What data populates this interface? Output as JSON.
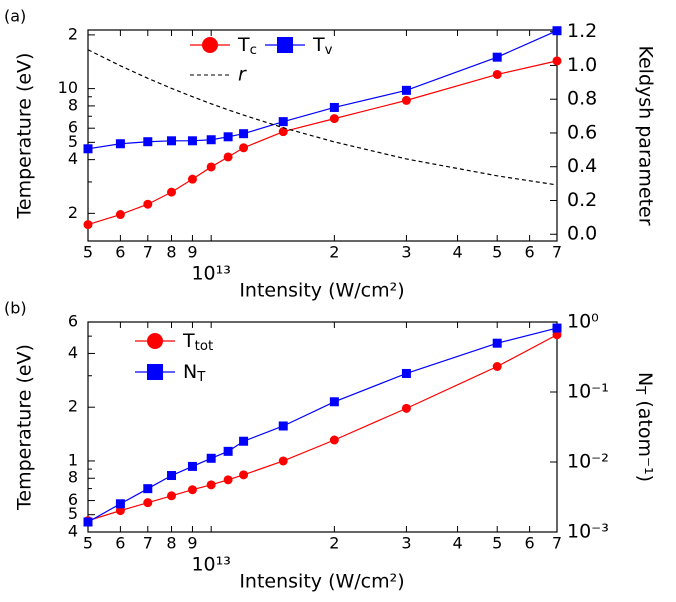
{
  "chart_data": [
    {
      "type": "line",
      "panel_label": "(a)",
      "xlabel": "Intensity (W/cm²)",
      "ylabel": "Temperature (eV)",
      "y2label": "Keldysh parameter",
      "xlog": true,
      "ylog": true,
      "y2log": false,
      "legend": "top",
      "x": [
        5000000000000.0,
        6000000000000.0,
        7000000000000.0,
        8000000000000.0,
        9000000000000.0,
        10000000000000.0,
        11000000000000.0,
        12000000000000.0,
        15000000000000.0,
        20000000000000.0,
        30000000000000.0,
        50000000000000.0,
        70000000000000.0
      ],
      "xlim": [
        5000000000000.0,
        70000000000000.0
      ],
      "xticks": [
        {
          "value": 5000000000000.0,
          "label": "5"
        },
        {
          "value": 6000000000000.0,
          "label": "6"
        },
        {
          "value": 7000000000000.0,
          "label": "7"
        },
        {
          "value": 8000000000000.0,
          "label": "8"
        },
        {
          "value": 9000000000000.0,
          "label": "9"
        },
        {
          "value": 10000000000000.0,
          "label": "10¹³"
        },
        {
          "value": 20000000000000.0,
          "label": "2"
        },
        {
          "value": 30000000000000.0,
          "label": "3"
        },
        {
          "value": 40000000000000.0,
          "label": "4"
        },
        {
          "value": 50000000000000.0,
          "label": "5"
        },
        {
          "value": 60000000000000.0,
          "label": "6"
        },
        {
          "value": 70000000000000.0,
          "label": "7"
        }
      ],
      "ylim": [
        1.4,
        21.3
      ],
      "yticks": [
        2,
        4,
        5,
        6,
        8,
        10,
        {
          "value": 20,
          "label": "2"
        }
      ],
      "yminorticks": [
        3,
        7,
        9
      ],
      "y2lim": [
        -0.04,
        1.21
      ],
      "y2ticks": [
        {
          "value": 0,
          "label": "0.0"
        },
        0.2,
        0.4,
        0.6,
        0.8,
        {
          "value": 1,
          "label": "1.0"
        },
        1.2
      ],
      "series": [
        {
          "name": "Tc",
          "color": "#ff0000",
          "marker": "circle",
          "values": [
            1.73,
            1.97,
            2.25,
            2.63,
            3.11,
            3.64,
            4.14,
            4.66,
            5.74,
            6.79,
            8.59,
            12.0,
            14.3
          ]
        },
        {
          "name": "Tv",
          "color": "#0000ff",
          "marker": "square",
          "values": [
            4.6,
            4.91,
            5.04,
            5.1,
            5.1,
            5.17,
            5.37,
            5.59,
            6.53,
            7.84,
            9.78,
            15.0,
            21.1
          ]
        },
        {
          "name": "r",
          "color": "#000000",
          "linestyle": "dashed",
          "axis": "y2",
          "values": [
            1.093,
            0.998,
            0.924,
            0.864,
            0.815,
            0.773,
            0.737,
            0.706,
            0.631,
            0.547,
            0.446,
            0.346,
            0.292
          ]
        }
      ]
    },
    {
      "type": "line",
      "panel_label": "(b)",
      "xlabel": "Intensity (W/cm²)",
      "ylabel": "Temperature (eV)",
      "y2label": "NT (atom⁻¹)",
      "xlog": true,
      "ylog": true,
      "y2log": true,
      "legend": "top",
      "x": [
        5000000000000.0,
        6000000000000.0,
        7000000000000.0,
        8000000000000.0,
        9000000000000.0,
        10000000000000.0,
        11000000000000.0,
        12000000000000.0,
        15000000000000.0,
        20000000000000.0,
        30000000000000.0,
        50000000000000.0,
        70000000000000.0
      ],
      "xlim": [
        5000000000000.0,
        70000000000000.0
      ],
      "xticks": [
        {
          "value": 5000000000000.0,
          "label": "5"
        },
        {
          "value": 6000000000000.0,
          "label": "6"
        },
        {
          "value": 7000000000000.0,
          "label": "7"
        },
        {
          "value": 8000000000000.0,
          "label": "8"
        },
        {
          "value": 9000000000000.0,
          "label": "9"
        },
        {
          "value": 10000000000000.0,
          "label": "10¹³"
        },
        {
          "value": 20000000000000.0,
          "label": "2"
        },
        {
          "value": 30000000000000.0,
          "label": "3"
        },
        {
          "value": 40000000000000.0,
          "label": "4"
        },
        {
          "value": 50000000000000.0,
          "label": "5"
        },
        {
          "value": 60000000000000.0,
          "label": "6"
        },
        {
          "value": 70000000000000.0,
          "label": "7"
        }
      ],
      "ylim": [
        0.4,
        6
      ],
      "yticks": [
        {
          "value": 0.4,
          "label": "4"
        },
        {
          "value": 0.5,
          "label": "5"
        },
        {
          "value": 0.6,
          "label": "6"
        },
        {
          "value": 0.8,
          "label": "8"
        },
        1,
        2,
        4,
        6
      ],
      "yminorticks": [
        0.7,
        0.9,
        3,
        5
      ],
      "y2lim": [
        0.001,
        1
      ],
      "y2ticks": [
        {
          "value": 0.001,
          "label": "10⁻³"
        },
        {
          "value": 0.01,
          "label": "10⁻²"
        },
        {
          "value": 0.1,
          "label": "10⁻¹"
        },
        {
          "value": 1,
          "label": "10⁰"
        }
      ],
      "series": [
        {
          "name": "Ttot",
          "color": "#ff0000",
          "marker": "circle",
          "values": [
            0.463,
            0.527,
            0.584,
            0.638,
            0.69,
            0.735,
            0.784,
            0.836,
            1.0,
            1.31,
            1.97,
            3.38,
            5.09
          ]
        },
        {
          "name": "NT",
          "color": "#0000ff",
          "marker": "square",
          "axis": "y2",
          "values": [
            0.00139,
            0.00253,
            0.00416,
            0.00641,
            0.00865,
            0.0113,
            0.0142,
            0.0198,
            0.0327,
            0.0725,
            0.184,
            0.498,
            0.819
          ]
        }
      ]
    }
  ]
}
